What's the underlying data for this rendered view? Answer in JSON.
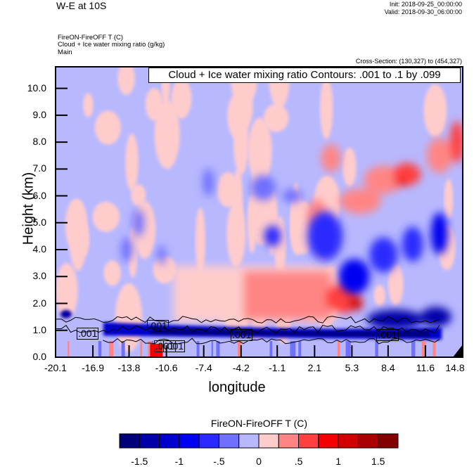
{
  "header": {
    "title": "W-E at 10S",
    "init": "Init: 2018-09-25_00:00:00",
    "valid": "Valid: 2018-09-30_06:00:00",
    "subtitle_lines": [
      "FireON-FireOFF T   (C)",
      "Cloud + Ice water mixing ratio   (g/kg)",
      "Main"
    ],
    "cross_section": "Cross-Section: (130,327) to (454,327)"
  },
  "chart_data": {
    "type": "heatmap",
    "title": "W-E at 10S",
    "xlabel": "longitude",
    "ylabel": "Height (km)",
    "xlim": [
      -20.1,
      14.8
    ],
    "ylim": [
      0.0,
      10.8
    ],
    "xticks": [
      "-20.1",
      "-16.9",
      "-13.8",
      "-10.6",
      "-7.4",
      "-4.2",
      "-1.1",
      "2.1",
      "5.3",
      "8.4",
      "11.6",
      "14.8"
    ],
    "xtick_values": [
      -20.1,
      -16.9,
      -13.8,
      -10.6,
      -7.4,
      -4.2,
      -1.1,
      2.1,
      5.3,
      8.4,
      11.6,
      14.8
    ],
    "yticks": [
      "0.0",
      "1.0",
      "2.0",
      "3.0",
      "4.0",
      "5.0",
      "6.0",
      "7.0",
      "8.0",
      "9.0",
      "10.0"
    ],
    "ytick_values": [
      0,
      1,
      2,
      3,
      4,
      5,
      6,
      7,
      8,
      9,
      10
    ],
    "contour_info": "Cloud + Ice water mixing ratio Contours: .001 to .1 by .099",
    "contour_labels": [
      ".001",
      ".001",
      ".001",
      ".001",
      ".001",
      ".001"
    ],
    "contour_label_positions": [
      [
        -17.2,
        0.85
      ],
      [
        -11.2,
        1.15
      ],
      [
        -10.6,
        0.4
      ],
      [
        -4.0,
        0.82
      ],
      [
        8.5,
        0.82
      ],
      [
        -9.8,
        0.4
      ]
    ],
    "colorbar": {
      "title": "FireON-FireOFF T  (C)",
      "tick_labels": [
        "-1.5",
        "-1",
        "-.5",
        "0",
        ".5",
        "1",
        "1.5"
      ],
      "tick_values": [
        -1.5,
        -1,
        -0.5,
        0,
        0.5,
        1,
        1.5
      ],
      "levels": [
        -1.5,
        -1.25,
        -1.0,
        -0.75,
        -0.5,
        -0.25,
        0,
        0.25,
        0.5,
        0.75,
        1.0,
        1.25,
        1.5
      ],
      "colors": [
        "#00007a",
        "#0000a8",
        "#0000cc",
        "#0000f0",
        "#2a2aff",
        "#7070ff",
        "#b8b8ff",
        "#ffcccc",
        "#ff8585",
        "#ff4040",
        "#f50000",
        "#d10000",
        "#a80000",
        "#820000"
      ]
    },
    "features": [
      {
        "name": "background-cool",
        "value": -0.1
      },
      {
        "name": "upper-right-warm-band",
        "x": [
          5,
          14.5
        ],
        "y": [
          5.5,
          9
        ],
        "value": 0.7
      },
      {
        "name": "mid-level-warm-layer",
        "x": [
          -10,
          5
        ],
        "y": [
          1.2,
          3.5
        ],
        "value": 0.5
      },
      {
        "name": "low-level-cold-band",
        "x": [
          -18,
          13
        ],
        "y": [
          0.6,
          1.2
        ],
        "value": -1.4
      },
      {
        "name": "mid-right-cold-blob",
        "x": [
          3,
          13
        ],
        "y": [
          1.2,
          5
        ],
        "value": -0.8
      }
    ]
  }
}
